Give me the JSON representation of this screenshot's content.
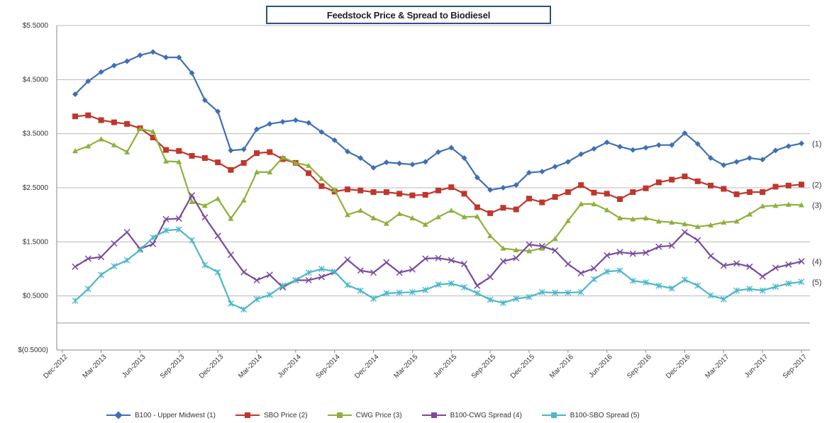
{
  "chart_data": {
    "type": "line",
    "title": "Feedstock Price & Spread to Biodiesel",
    "xlabel": "",
    "ylabel": "",
    "ylim": [
      -0.5,
      5.5
    ],
    "yticks": [
      "$5.5000",
      "$4.5000",
      "$3.5000",
      "$2.5000",
      "$1.5000",
      "$0.5000",
      "",
      "$(0.5000)"
    ],
    "ytick_values": [
      5.5,
      4.5,
      3.5,
      2.5,
      1.5,
      0.5,
      0,
      -0.5
    ],
    "xticks": [
      "Dec-2012",
      "Mar-2013",
      "Jun-2013",
      "Sep-2013",
      "Dec-2013",
      "Mar-2014",
      "Jun-2014",
      "Sep-2014",
      "Dec-2014",
      "Mar-2015",
      "Jun-2015",
      "Sep-2015",
      "Dec-2015",
      "Mar-2016",
      "Jun-2016",
      "Sep-2016",
      "Dec-2016",
      "Mar-2017",
      "Jun-2017",
      "Sep-2017"
    ],
    "x": [
      "Jan-2013",
      "Feb-2013",
      "Mar-2013",
      "Apr-2013",
      "May-2013",
      "Jun-2013",
      "Jul-2013",
      "Aug-2013",
      "Sep-2013",
      "Oct-2013",
      "Nov-2013",
      "Dec-2013",
      "Jan-2014",
      "Feb-2014",
      "Mar-2014",
      "Apr-2014",
      "May-2014",
      "Jun-2014",
      "Jul-2014",
      "Aug-2014",
      "Sep-2014",
      "Oct-2014",
      "Nov-2014",
      "Dec-2014",
      "Jan-2015",
      "Feb-2015",
      "Mar-2015",
      "Apr-2015",
      "May-2015",
      "Jun-2015",
      "Jul-2015",
      "Aug-2015",
      "Sep-2015",
      "Oct-2015",
      "Nov-2015",
      "Dec-2015",
      "Jan-2016",
      "Feb-2016",
      "Mar-2016",
      "Apr-2016",
      "May-2016",
      "Jun-2016",
      "Jul-2016",
      "Aug-2016",
      "Sep-2016",
      "Oct-2016",
      "Nov-2016",
      "Dec-2016",
      "Jan-2017",
      "Feb-2017",
      "Mar-2017",
      "Apr-2017",
      "May-2017",
      "Jun-2017",
      "Jul-2017",
      "Aug-2017",
      "Sep-2017"
    ],
    "grid": "horizontal",
    "legend": "bottom",
    "series": [
      {
        "name": "B100 - Upper Midwest (1)",
        "end_label": "(1)",
        "color": "#3f6fb4",
        "marker": "diamond",
        "values": [
          4.23,
          4.47,
          4.64,
          4.76,
          4.84,
          4.95,
          5.01,
          4.91,
          4.91,
          4.62,
          4.12,
          3.91,
          3.19,
          3.21,
          3.58,
          3.68,
          3.72,
          3.75,
          3.7,
          3.53,
          3.38,
          3.17,
          3.05,
          2.87,
          2.97,
          2.95,
          2.93,
          2.98,
          3.16,
          3.24,
          3.05,
          2.69,
          2.46,
          2.5,
          2.55,
          2.78,
          2.8,
          2.89,
          2.98,
          3.12,
          3.22,
          3.34,
          3.26,
          3.2,
          3.24,
          3.29,
          3.29,
          3.51,
          3.31,
          3.05,
          2.92,
          2.98,
          3.05,
          3.02,
          3.19,
          3.27,
          3.32
        ]
      },
      {
        "name": "SBO Price (2)",
        "end_label": "(2)",
        "color": "#c0362c",
        "marker": "square",
        "values": [
          3.82,
          3.84,
          3.75,
          3.71,
          3.68,
          3.6,
          3.43,
          3.2,
          3.18,
          3.09,
          3.05,
          2.97,
          2.83,
          2.96,
          3.14,
          3.16,
          3.03,
          2.96,
          2.77,
          2.53,
          2.43,
          2.47,
          2.45,
          2.42,
          2.42,
          2.39,
          2.36,
          2.37,
          2.45,
          2.51,
          2.39,
          2.14,
          2.03,
          2.13,
          2.1,
          2.3,
          2.23,
          2.33,
          2.42,
          2.55,
          2.41,
          2.39,
          2.29,
          2.42,
          2.49,
          2.6,
          2.65,
          2.71,
          2.62,
          2.54,
          2.48,
          2.38,
          2.42,
          2.42,
          2.52,
          2.54,
          2.56
        ]
      },
      {
        "name": "CWG Price (3)",
        "end_label": "(3)",
        "color": "#8db13a",
        "marker": "triangle",
        "values": [
          3.18,
          3.27,
          3.4,
          3.29,
          3.16,
          3.59,
          3.54,
          2.99,
          2.98,
          2.24,
          2.17,
          2.3,
          1.93,
          2.27,
          2.79,
          2.79,
          3.06,
          2.96,
          2.91,
          2.67,
          2.46,
          2.0,
          2.08,
          1.94,
          1.84,
          2.02,
          1.94,
          1.82,
          1.96,
          2.08,
          1.96,
          1.97,
          1.61,
          1.38,
          1.35,
          1.33,
          1.38,
          1.56,
          1.89,
          2.2,
          2.2,
          2.09,
          1.94,
          1.92,
          1.94,
          1.88,
          1.86,
          1.83,
          1.78,
          1.81,
          1.86,
          1.88,
          2.01,
          2.16,
          2.17,
          2.19,
          2.18
        ]
      },
      {
        "name": "B100-CWG Spread (4)",
        "end_label": "(4)",
        "color": "#7a4a9e",
        "marker": "x",
        "values": [
          1.04,
          1.19,
          1.22,
          1.47,
          1.68,
          1.37,
          1.46,
          1.92,
          1.93,
          2.36,
          1.95,
          1.61,
          1.26,
          0.94,
          0.79,
          0.89,
          0.66,
          0.79,
          0.79,
          0.85,
          0.94,
          1.17,
          0.97,
          0.93,
          1.12,
          0.93,
          0.99,
          1.19,
          1.2,
          1.16,
          1.09,
          0.69,
          0.85,
          1.14,
          1.2,
          1.45,
          1.42,
          1.34,
          1.09,
          0.92,
          1.01,
          1.25,
          1.31,
          1.28,
          1.3,
          1.41,
          1.43,
          1.68,
          1.53,
          1.24,
          1.06,
          1.1,
          1.04,
          0.86,
          1.02,
          1.08,
          1.14
        ]
      },
      {
        "name": "B100-SBO Spread (5)",
        "end_label": "(5)",
        "color": "#4bb7c9",
        "marker": "asterisk",
        "values": [
          0.41,
          0.63,
          0.89,
          1.05,
          1.16,
          1.35,
          1.58,
          1.71,
          1.73,
          1.53,
          1.07,
          0.94,
          0.36,
          0.25,
          0.44,
          0.52,
          0.69,
          0.79,
          0.93,
          1.0,
          0.95,
          0.7,
          0.6,
          0.45,
          0.55,
          0.56,
          0.57,
          0.61,
          0.71,
          0.73,
          0.66,
          0.55,
          0.43,
          0.37,
          0.45,
          0.48,
          0.57,
          0.56,
          0.56,
          0.57,
          0.81,
          0.95,
          0.97,
          0.78,
          0.75,
          0.69,
          0.64,
          0.8,
          0.69,
          0.51,
          0.44,
          0.6,
          0.63,
          0.6,
          0.67,
          0.73,
          0.76
        ]
      }
    ]
  }
}
